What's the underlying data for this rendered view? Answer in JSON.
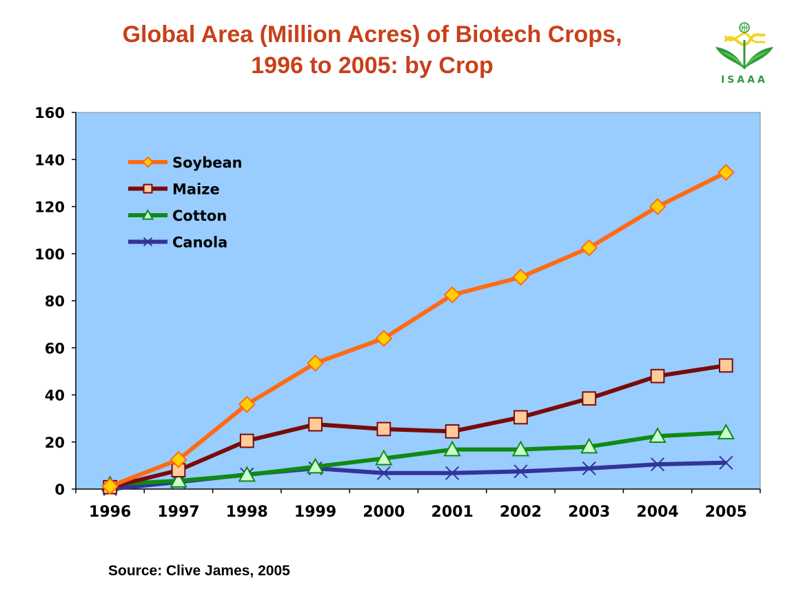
{
  "title": {
    "line1": "Global Area (Million Acres) of Biotech Crops,",
    "line2": "1996 to 2005: by Crop"
  },
  "logo": {
    "text": "ISAAA",
    "icon": "isaaa-logo-plant-globe"
  },
  "source": "Source: Clive James, 2005",
  "colors": {
    "plot_background": "#99ccff",
    "title": "#c8401a",
    "logo_green": "#2f9a3a"
  },
  "chart_data": {
    "type": "line",
    "title": "Global Area (Million Acres) of Biotech Crops, 1996 to 2005: by Crop",
    "xlabel": "",
    "ylabel": "",
    "ylim": [
      0,
      160
    ],
    "yticks": [
      0,
      20,
      40,
      60,
      80,
      100,
      120,
      140,
      160
    ],
    "grid": false,
    "legend_position": "top-left",
    "categories": [
      "1996",
      "1997",
      "1998",
      "1999",
      "2000",
      "2001",
      "2002",
      "2003",
      "2004",
      "2005"
    ],
    "series": [
      {
        "name": "Soybean",
        "color": "#ff6a13",
        "marker": "diamond",
        "marker_fill": "#ffd000",
        "marker_stroke": "#ff6a13",
        "values": [
          1.2,
          12.5,
          36,
          53.5,
          64,
          82.5,
          90,
          102.5,
          120,
          134.5
        ]
      },
      {
        "name": "Maize",
        "color": "#7a0a0a",
        "marker": "square",
        "marker_fill": "#ffcc99",
        "marker_stroke": "#7a0a0a",
        "values": [
          0.8,
          8,
          20.5,
          27.5,
          25.5,
          24.5,
          30.5,
          38.5,
          48,
          52.5
        ]
      },
      {
        "name": "Cotton",
        "color": "#0f8a14",
        "marker": "triangle",
        "marker_fill": "#ccffcc",
        "marker_stroke": "#0f8a14",
        "values": [
          2,
          3.5,
          6,
          9.5,
          13,
          16.8,
          16.8,
          18,
          22.5,
          24
        ]
      },
      {
        "name": "Canola",
        "color": "#333399",
        "marker": "x",
        "marker_fill": "none",
        "marker_stroke": "#333399",
        "values": [
          0,
          3,
          6.2,
          8.8,
          6.8,
          6.8,
          7.5,
          8.8,
          10.5,
          11.2
        ]
      }
    ]
  }
}
